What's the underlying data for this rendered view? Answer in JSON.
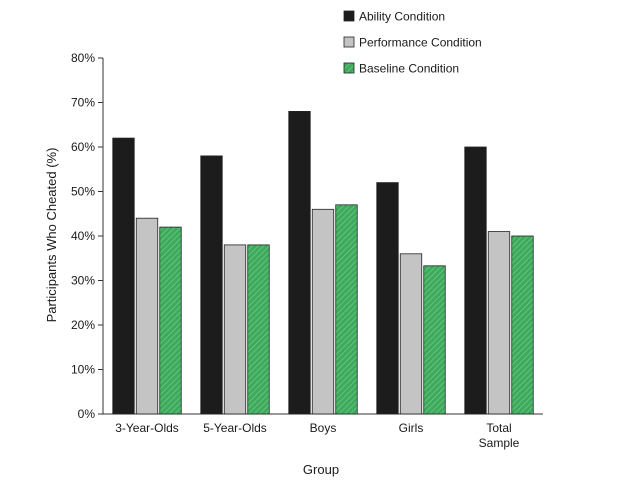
{
  "chart_data": {
    "type": "bar",
    "xlabel": "Group",
    "ylabel": "Participants Who Cheated (%)",
    "ylim": [
      0,
      80
    ],
    "yticks": [
      "0%",
      "10%",
      "20%",
      "30%",
      "40%",
      "50%",
      "60%",
      "70%",
      "80%"
    ],
    "grid": false,
    "legend_position": "top-right",
    "categories": [
      [
        "3-Year-Olds"
      ],
      [
        "5-Year-Olds"
      ],
      [
        "Boys"
      ],
      [
        "Girls"
      ],
      [
        "Total",
        "Sample"
      ]
    ],
    "series": [
      {
        "name": "Ability Condition",
        "color": "#1c1c1c",
        "pattern": "solid",
        "values": [
          62,
          58,
          68,
          52,
          60
        ]
      },
      {
        "name": "Performance Condition",
        "color": "#c4c4c4",
        "pattern": "solid",
        "values": [
          44,
          38,
          46,
          36,
          41
        ]
      },
      {
        "name": "Baseline Condition",
        "color": "#3daa5c",
        "pattern": "diagonal-hatch",
        "values": [
          42,
          38,
          47,
          33.3,
          40
        ]
      }
    ]
  }
}
